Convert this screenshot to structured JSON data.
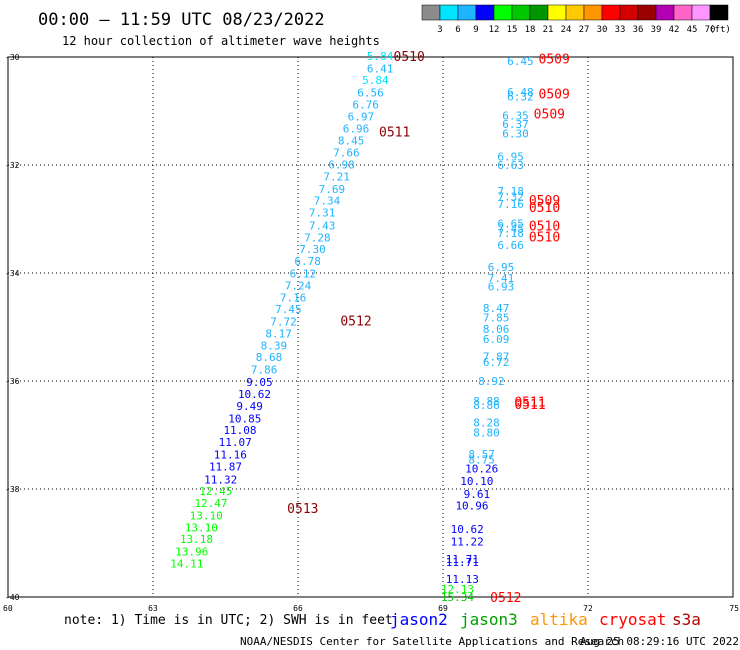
{
  "header": {
    "title": "00:00 — 11:59 UTC 08/23/2022",
    "subtitle": "12 hour collection of altimeter wave heights"
  },
  "colorbar": {
    "bins": [
      {
        "label": "3",
        "color": "#8c8c8c"
      },
      {
        "label": "6",
        "color": "#00e5ff"
      },
      {
        "label": "9",
        "color": "#1eb4ff"
      },
      {
        "label": "12",
        "color": "#0000ff"
      },
      {
        "label": "15",
        "color": "#00ff00"
      },
      {
        "label": "18",
        "color": "#00c800"
      },
      {
        "label": "21",
        "color": "#009600"
      },
      {
        "label": "24",
        "color": "#ffff00"
      },
      {
        "label": "27",
        "color": "#ffc800"
      },
      {
        "label": "30",
        "color": "#ff9600"
      },
      {
        "label": "33",
        "color": "#ff0000"
      },
      {
        "label": "36",
        "color": "#d20000"
      },
      {
        "label": "39",
        "color": "#9b0000"
      },
      {
        "label": "42",
        "color": "#b400b4"
      },
      {
        "label": "45",
        "color": "#ff64c8"
      },
      {
        "label": "70",
        "color": "#ff96ff"
      },
      {
        "label": "(ft)",
        "color": "#000000"
      }
    ]
  },
  "footer": {
    "note": "note: 1) Time is in UTC; 2) SWH is in feet",
    "credit": "NOAA/NESDIS Center for Satellite Applications and Research",
    "timestamp": "Aug 25 08:29:16 UTC 2022",
    "missions": [
      {
        "name": "jason2",
        "color": "#0000ff"
      },
      {
        "name": "jason3",
        "color": "#00a000"
      },
      {
        "name": "altika",
        "color": "#ff9600"
      },
      {
        "name": "cryosat",
        "color": "#ff0000"
      },
      {
        "name": "s3a",
        "color": "#b40000"
      }
    ]
  },
  "chart_data": {
    "type": "scatter",
    "x_ticks": [
      "60",
      "63",
      "66",
      "69",
      "72",
      "75"
    ],
    "y_ticks": [
      "-30",
      "-32",
      "-34",
      "-36",
      "-38",
      "-40"
    ],
    "xlim": [
      60,
      75
    ],
    "ylim": [
      -40,
      -30
    ],
    "grid": true,
    "time_color": "#8b0000",
    "wave_points": [
      {
        "x": 67.7,
        "y": -29.98,
        "v": "5.84"
      },
      {
        "x": 67.7,
        "y": -30.21,
        "v": "6.41"
      },
      {
        "x": 67.6,
        "y": -30.43,
        "v": "5.84"
      },
      {
        "x": 67.5,
        "y": -30.66,
        "v": "6.56"
      },
      {
        "x": 67.4,
        "y": -30.88,
        "v": "6.76"
      },
      {
        "x": 67.3,
        "y": -31.1,
        "v": "6.97"
      },
      {
        "x": 67.2,
        "y": -31.32,
        "v": "6.96"
      },
      {
        "x": 67.1,
        "y": -31.55,
        "v": "8.45"
      },
      {
        "x": 67.0,
        "y": -31.77,
        "v": "7.66"
      },
      {
        "x": 66.9,
        "y": -31.99,
        "v": "6.98"
      },
      {
        "x": 66.8,
        "y": -32.21,
        "v": "7.21"
      },
      {
        "x": 66.7,
        "y": -32.44,
        "v": "7.69"
      },
      {
        "x": 66.6,
        "y": -32.66,
        "v": "7.34"
      },
      {
        "x": 66.5,
        "y": -32.88,
        "v": "7.31"
      },
      {
        "x": 66.5,
        "y": -33.12,
        "v": "7.43"
      },
      {
        "x": 66.4,
        "y": -33.34,
        "v": "7.28"
      },
      {
        "x": 66.3,
        "y": -33.56,
        "v": "7.30"
      },
      {
        "x": 66.2,
        "y": -33.78,
        "v": "6.78"
      },
      {
        "x": 66.1,
        "y": -34.01,
        "v": "6.12"
      },
      {
        "x": 66.0,
        "y": -34.23,
        "v": "7.24"
      },
      {
        "x": 65.9,
        "y": -34.45,
        "v": "7.16"
      },
      {
        "x": 65.8,
        "y": -34.67,
        "v": "7.45"
      },
      {
        "x": 65.7,
        "y": -34.9,
        "v": "7.72"
      },
      {
        "x": 65.6,
        "y": -35.12,
        "v": "8.17"
      },
      {
        "x": 65.5,
        "y": -35.34,
        "v": "8.39"
      },
      {
        "x": 65.4,
        "y": -35.56,
        "v": "8.68"
      },
      {
        "x": 65.3,
        "y": -35.79,
        "v": "7.86"
      },
      {
        "x": 65.2,
        "y": -36.02,
        "v": "9.05"
      },
      {
        "x": 65.1,
        "y": -36.24,
        "v": "10.62"
      },
      {
        "x": 65.0,
        "y": -36.46,
        "v": "9.49"
      },
      {
        "x": 64.9,
        "y": -36.69,
        "v": "10.85"
      },
      {
        "x": 64.8,
        "y": -36.91,
        "v": "11.08"
      },
      {
        "x": 64.7,
        "y": -37.13,
        "v": "11.07"
      },
      {
        "x": 64.6,
        "y": -37.36,
        "v": "11.16"
      },
      {
        "x": 64.5,
        "y": -37.58,
        "v": "11.87"
      },
      {
        "x": 64.4,
        "y": -37.82,
        "v": "11.32"
      },
      {
        "x": 64.3,
        "y": -38.04,
        "v": "12.45"
      },
      {
        "x": 64.2,
        "y": -38.26,
        "v": "12.47"
      },
      {
        "x": 64.1,
        "y": -38.49,
        "v": "13.10"
      },
      {
        "x": 64.0,
        "y": -38.71,
        "v": "13.10"
      },
      {
        "x": 63.9,
        "y": -38.93,
        "v": "13.18"
      },
      {
        "x": 63.8,
        "y": -39.16,
        "v": "13.96"
      },
      {
        "x": 63.7,
        "y": -39.38,
        "v": "14.11"
      },
      {
        "x": 70.6,
        "y": -30.07,
        "v": "6.45"
      },
      {
        "x": 70.6,
        "y": -30.65,
        "v": "6.48"
      },
      {
        "x": 70.6,
        "y": -30.73,
        "v": "6.32"
      },
      {
        "x": 70.5,
        "y": -31.08,
        "v": "6.35"
      },
      {
        "x": 70.5,
        "y": -31.24,
        "v": "6.37"
      },
      {
        "x": 70.5,
        "y": -31.42,
        "v": "6.30"
      },
      {
        "x": 70.4,
        "y": -31.84,
        "v": "6.95"
      },
      {
        "x": 70.4,
        "y": -32.0,
        "v": "6.63"
      },
      {
        "x": 70.4,
        "y": -32.48,
        "v": "7.18"
      },
      {
        "x": 70.4,
        "y": -32.58,
        "v": "7.32"
      },
      {
        "x": 70.4,
        "y": -32.72,
        "v": "7.16"
      },
      {
        "x": 70.4,
        "y": -33.08,
        "v": "6.65"
      },
      {
        "x": 70.4,
        "y": -33.18,
        "v": "7.45"
      },
      {
        "x": 70.4,
        "y": -33.26,
        "v": "7.18"
      },
      {
        "x": 70.4,
        "y": -33.48,
        "v": "6.66"
      },
      {
        "x": 70.2,
        "y": -33.89,
        "v": "6.95"
      },
      {
        "x": 70.2,
        "y": -34.09,
        "v": "7.41"
      },
      {
        "x": 70.2,
        "y": -34.25,
        "v": "6.93"
      },
      {
        "x": 70.1,
        "y": -34.65,
        "v": "8.47"
      },
      {
        "x": 70.1,
        "y": -34.82,
        "v": "7.85"
      },
      {
        "x": 70.1,
        "y": -35.04,
        "v": "8.06"
      },
      {
        "x": 70.1,
        "y": -35.22,
        "v": "6.09"
      },
      {
        "x": 70.1,
        "y": -35.55,
        "v": "7.87"
      },
      {
        "x": 70.1,
        "y": -35.65,
        "v": "6.72"
      },
      {
        "x": 70.0,
        "y": -36.0,
        "v": "8.92"
      },
      {
        "x": 69.9,
        "y": -36.37,
        "v": "8.88"
      },
      {
        "x": 69.9,
        "y": -36.44,
        "v": "8.86"
      },
      {
        "x": 69.9,
        "y": -36.77,
        "v": "8.28"
      },
      {
        "x": 69.9,
        "y": -36.95,
        "v": "8.80"
      },
      {
        "x": 69.8,
        "y": -37.35,
        "v": "8.57"
      },
      {
        "x": 69.8,
        "y": -37.45,
        "v": "8.75"
      },
      {
        "x": 69.8,
        "y": -37.62,
        "v": "10.26"
      },
      {
        "x": 69.7,
        "y": -37.85,
        "v": "10.10"
      },
      {
        "x": 69.7,
        "y": -38.09,
        "v": "9.61"
      },
      {
        "x": 69.6,
        "y": -38.31,
        "v": "10.96"
      },
      {
        "x": 69.5,
        "y": -38.74,
        "v": "10.62"
      },
      {
        "x": 69.5,
        "y": -38.97,
        "v": "11.22"
      },
      {
        "x": 69.4,
        "y": -39.3,
        "v": "11.71"
      },
      {
        "x": 69.4,
        "y": -39.35,
        "v": "11.71"
      },
      {
        "x": 69.4,
        "y": -39.67,
        "v": "11.13"
      },
      {
        "x": 69.3,
        "y": -39.85,
        "v": "12.13"
      },
      {
        "x": 69.3,
        "y": -40.0,
        "v": "15.34"
      }
    ],
    "time_labels": [
      {
        "x": 68.3,
        "y": -29.98,
        "t": "0510"
      },
      {
        "x": 71.3,
        "y": -30.03,
        "t": "0509"
      },
      {
        "x": 71.3,
        "y": -30.68,
        "t": "0509"
      },
      {
        "x": 71.2,
        "y": -31.05,
        "t": "0509"
      },
      {
        "x": 68.0,
        "y": -31.38,
        "t": "0511"
      },
      {
        "x": 71.1,
        "y": -32.65,
        "t": "0509"
      },
      {
        "x": 71.1,
        "y": -32.78,
        "t": "0510"
      },
      {
        "x": 71.1,
        "y": -33.12,
        "t": "0510"
      },
      {
        "x": 71.1,
        "y": -33.32,
        "t": "0510"
      },
      {
        "x": 67.2,
        "y": -34.88,
        "t": "0512"
      },
      {
        "x": 70.8,
        "y": -36.38,
        "t": "0511"
      },
      {
        "x": 70.8,
        "y": -36.43,
        "t": "0511"
      },
      {
        "x": 66.1,
        "y": -38.35,
        "t": "0513"
      },
      {
        "x": 70.3,
        "y": -40.0,
        "t": "0512"
      }
    ]
  }
}
